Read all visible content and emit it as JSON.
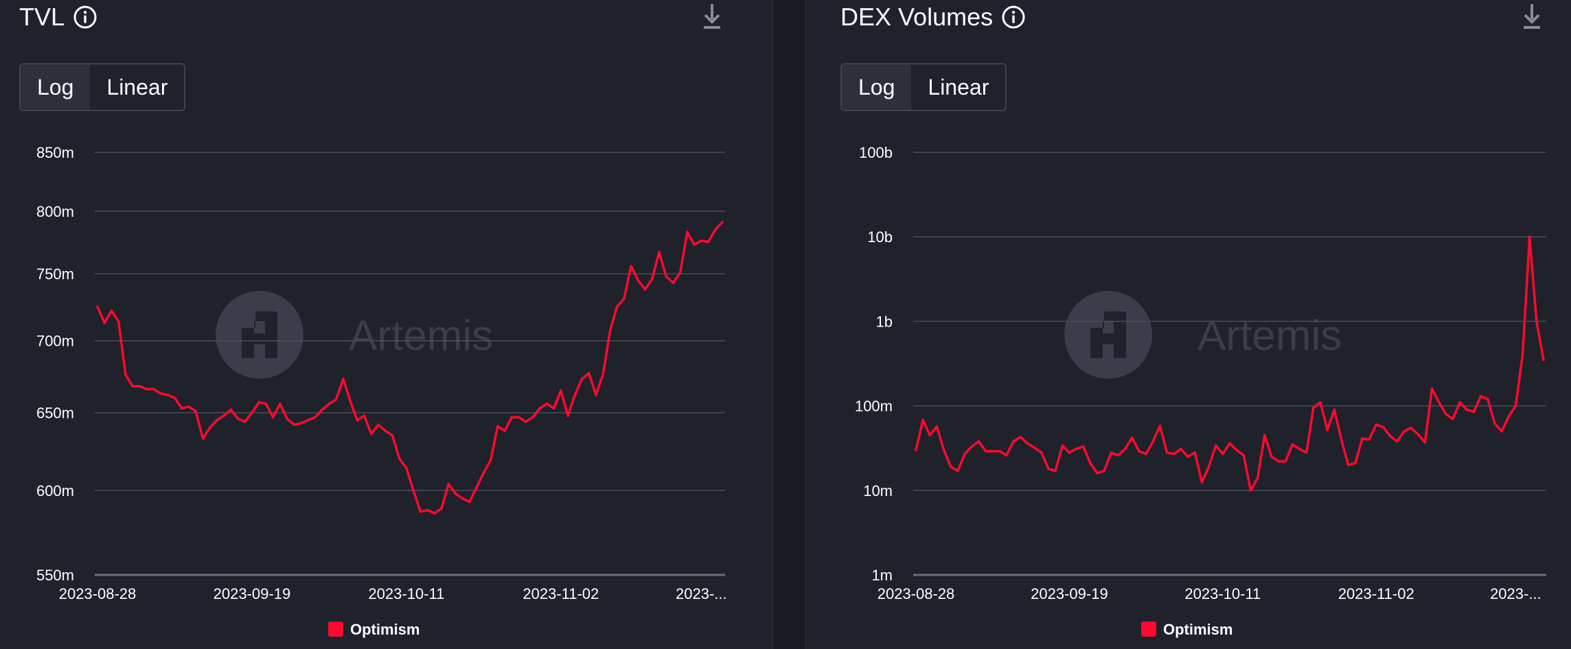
{
  "colors": {
    "background": "#1f212b",
    "gridline": "#4a4e5b",
    "series": "#ff0a2e",
    "text": "#ffffff",
    "watermark": "#3b3e4a"
  },
  "watermark": {
    "text": "Artemis",
    "icon": "artemis-logo-icon"
  },
  "icons": {
    "info": "info-circle-icon",
    "download": "download-icon"
  },
  "panels": [
    {
      "title": "TVL",
      "toggle": {
        "log_label": "Log",
        "linear_label": "Linear",
        "selected": "Log"
      },
      "legend": "Optimism"
    },
    {
      "title": "DEX Volumes",
      "toggle": {
        "log_label": "Log",
        "linear_label": "Linear",
        "selected": "Log"
      },
      "legend": "Optimism"
    }
  ],
  "chart_data": [
    {
      "type": "line",
      "title": "TVL",
      "yscale": "log",
      "ylim": [
        550000000,
        850000000
      ],
      "y_ticks": [
        550000000,
        600000000,
        650000000,
        700000000,
        750000000,
        800000000,
        850000000
      ],
      "y_tick_labels": [
        "550m",
        "600m",
        "650m",
        "700m",
        "750m",
        "800m",
        "850m"
      ],
      "x_tick_labels": [
        "2023-08-28",
        "2023-09-19",
        "2023-10-11",
        "2023-11-02",
        "2023-..."
      ],
      "x_tick_positions": [
        0,
        22,
        44,
        66,
        86
      ],
      "grid": true,
      "legend_position": "bottom-center",
      "series": [
        {
          "name": "Optimism",
          "color": "#ff0a2e",
          "values": [
            725,
            713,
            722,
            714,
            676,
            668,
            668,
            666,
            666,
            663,
            662,
            660,
            653,
            654,
            651,
            633,
            640,
            645,
            648,
            652,
            646,
            644,
            650,
            657,
            656,
            647,
            656,
            646,
            642,
            643,
            645,
            647,
            652,
            656,
            659,
            673,
            658,
            645,
            648,
            636,
            642,
            638,
            635,
            620,
            614,
            600,
            587,
            588,
            586,
            589,
            604,
            598,
            595,
            593,
            602,
            611,
            619,
            641,
            638,
            647,
            647,
            644,
            647,
            653,
            656,
            653,
            665,
            648,
            662,
            673,
            677,
            662,
            676,
            707,
            725,
            731,
            756,
            745,
            738,
            746,
            767,
            748,
            743,
            751,
            783,
            773,
            776,
            775,
            785,
            791
          ]
        }
      ]
    },
    {
      "type": "line",
      "title": "DEX Volumes",
      "yscale": "log",
      "ylim": [
        1000000,
        100000000000
      ],
      "y_ticks": [
        1000000,
        10000000,
        100000000,
        1000000000,
        10000000000,
        100000000000
      ],
      "y_tick_labels": [
        "1m",
        "10m",
        "100m",
        "1b",
        "10b",
        "100b"
      ],
      "x_tick_labels": [
        "2023-08-28",
        "2023-09-19",
        "2023-10-11",
        "2023-11-02",
        "2023-..."
      ],
      "x_tick_positions": [
        0,
        22,
        44,
        66,
        86
      ],
      "grid": true,
      "legend_position": "bottom-center",
      "series": [
        {
          "name": "Optimism",
          "color": "#ff0a2e",
          "values": [
            30,
            68,
            45,
            57,
            30,
            19,
            17,
            27,
            33,
            38,
            29,
            29,
            29,
            26,
            38,
            43,
            36,
            32,
            28,
            18,
            17,
            34,
            28,
            31,
            33,
            21,
            16,
            17,
            28,
            26,
            31,
            42,
            29,
            27,
            38,
            58,
            28,
            27,
            31,
            25,
            28,
            12.5,
            19,
            34,
            27,
            36,
            30,
            26,
            10,
            14,
            45,
            25,
            22,
            22,
            35,
            31,
            28,
            95,
            110,
            52,
            90,
            40,
            20,
            21,
            41,
            40,
            60,
            56,
            44,
            38,
            50,
            55,
            46,
            37,
            160,
            110,
            80,
            70,
            110,
            90,
            85,
            130,
            120,
            62,
            50,
            75,
            100,
            400,
            10000,
            1000,
            350
          ]
        }
      ]
    }
  ]
}
